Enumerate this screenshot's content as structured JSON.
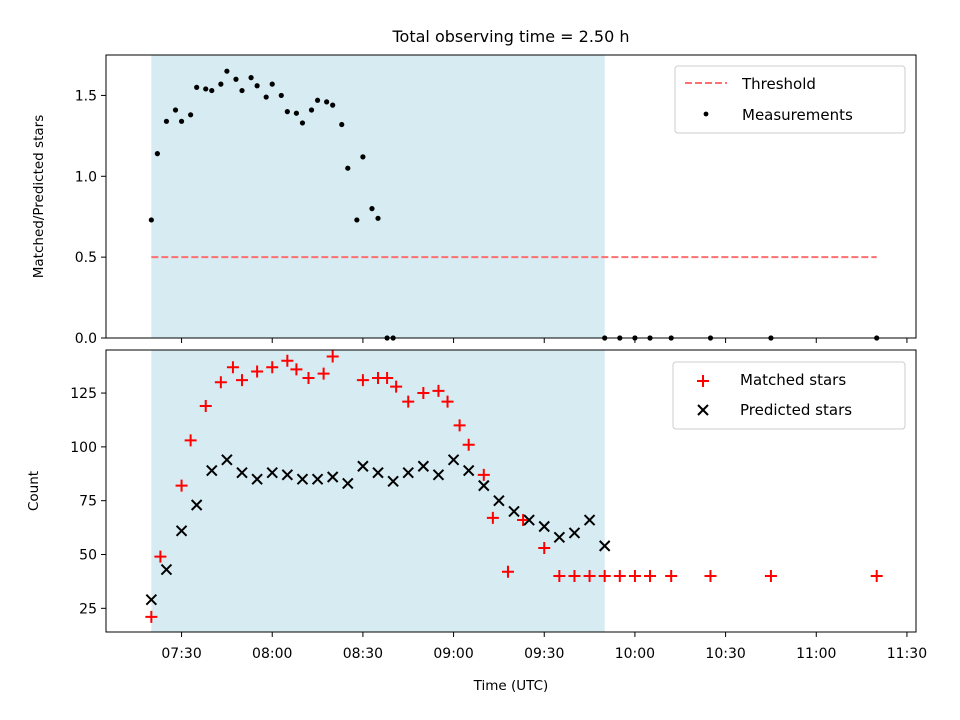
{
  "chart_data": [
    {
      "type": "scatter",
      "title": "Total observing time = 2.50 h",
      "ylabel": "Matched/Predicted stars",
      "xlabel": "",
      "ylim": [
        0,
        1.75
      ],
      "yticks": [
        {
          "value": 0.0,
          "label": "0.0"
        },
        {
          "value": 0.5,
          "label": "0.5"
        },
        {
          "value": 1.0,
          "label": "1.0"
        },
        {
          "value": 1.5,
          "label": "1.5"
        }
      ],
      "shaded_span": {
        "start": "07:20",
        "end": "09:50",
        "color": "#add8e6"
      },
      "series": [
        {
          "name": "Threshold",
          "style": "dashed-line",
          "color": "#ff6f6f",
          "x": [
            "07:20",
            "11:20"
          ],
          "y": [
            0.5,
            0.5
          ]
        },
        {
          "name": "Measurements",
          "style": "dot",
          "color": "#000000",
          "x": [
            "07:20",
            "07:22",
            "07:25",
            "07:28",
            "07:30",
            "07:33",
            "07:35",
            "07:38",
            "07:40",
            "07:43",
            "07:45",
            "07:48",
            "07:50",
            "07:53",
            "07:55",
            "07:58",
            "08:00",
            "08:03",
            "08:05",
            "08:08",
            "08:10",
            "08:13",
            "08:15",
            "08:18",
            "08:20",
            "08:23",
            "08:25",
            "08:28",
            "08:30",
            "08:33",
            "08:35",
            "08:38",
            "08:40",
            "09:50",
            "09:55",
            "10:00",
            "10:05",
            "10:12",
            "10:25",
            "10:45",
            "11:20"
          ],
          "y": [
            0.73,
            1.14,
            1.34,
            1.41,
            1.34,
            1.38,
            1.55,
            1.54,
            1.53,
            1.57,
            1.65,
            1.6,
            1.53,
            1.61,
            1.56,
            1.49,
            1.57,
            1.5,
            1.4,
            1.39,
            1.33,
            1.41,
            1.47,
            1.46,
            1.44,
            1.32,
            1.05,
            0.73,
            1.12,
            0.8,
            0.74,
            0.0,
            0.0,
            0.0,
            0.0,
            0.0,
            0.0,
            0.0,
            0.0,
            0.0,
            0.0
          ]
        }
      ]
    },
    {
      "type": "scatter",
      "title": "",
      "ylabel": "Count",
      "xlabel": "Time (UTC)",
      "ylim": [
        14,
        145
      ],
      "yticks": [
        {
          "value": 25,
          "label": "25"
        },
        {
          "value": 50,
          "label": "50"
        },
        {
          "value": 75,
          "label": "75"
        },
        {
          "value": 100,
          "label": "100"
        },
        {
          "value": 125,
          "label": "125"
        }
      ],
      "xlim": [
        "07:05",
        "11:33"
      ],
      "xticks": [
        {
          "value": "07:30",
          "label": "07:30"
        },
        {
          "value": "08:00",
          "label": "08:00"
        },
        {
          "value": "08:30",
          "label": "08:30"
        },
        {
          "value": "09:00",
          "label": "09:00"
        },
        {
          "value": "09:30",
          "label": "09:30"
        },
        {
          "value": "10:00",
          "label": "10:00"
        },
        {
          "value": "10:30",
          "label": "10:30"
        },
        {
          "value": "11:00",
          "label": "11:00"
        },
        {
          "value": "11:30",
          "label": "11:30"
        }
      ],
      "shaded_span": {
        "start": "07:20",
        "end": "09:50",
        "color": "#add8e6"
      },
      "series": [
        {
          "name": "Matched stars",
          "style": "plus",
          "color": "#ff0000",
          "x": [
            "07:20",
            "07:23",
            "07:30",
            "07:33",
            "07:38",
            "07:43",
            "07:47",
            "07:50",
            "07:55",
            "08:00",
            "08:05",
            "08:08",
            "08:12",
            "08:17",
            "08:20",
            "08:30",
            "08:35",
            "08:38",
            "08:41",
            "08:45",
            "08:50",
            "08:55",
            "08:58",
            "09:02",
            "09:05",
            "09:10",
            "09:13",
            "09:18",
            "09:23",
            "09:30",
            "09:35",
            "09:40",
            "09:45",
            "09:50",
            "09:55",
            "10:00",
            "10:05",
            "10:12",
            "10:25",
            "10:45",
            "11:20"
          ],
          "y": [
            21,
            49,
            82,
            103,
            119,
            130,
            137,
            131,
            135,
            137,
            140,
            136,
            132,
            134,
            142,
            131,
            132,
            132,
            128,
            121,
            125,
            126,
            121,
            110,
            101,
            87,
            67,
            42,
            66,
            53,
            40,
            40,
            40,
            40,
            40,
            40,
            40,
            40,
            40,
            40,
            40
          ]
        },
        {
          "name": "Predicted stars",
          "style": "x",
          "color": "#000000",
          "x": [
            "07:20",
            "07:25",
            "07:30",
            "07:35",
            "07:40",
            "07:45",
            "07:50",
            "07:55",
            "08:00",
            "08:05",
            "08:10",
            "08:15",
            "08:20",
            "08:25",
            "08:30",
            "08:35",
            "08:40",
            "08:45",
            "08:50",
            "08:55",
            "09:00",
            "09:05",
            "09:10",
            "09:15",
            "09:20",
            "09:25",
            "09:30",
            "09:35",
            "09:40",
            "09:45",
            "09:50"
          ],
          "y": [
            29,
            43,
            61,
            73,
            89,
            94,
            88,
            85,
            88,
            87,
            85,
            85,
            86,
            83,
            91,
            88,
            84,
            88,
            91,
            87,
            94,
            89,
            82,
            75,
            70,
            66,
            63,
            58,
            60,
            66,
            54
          ]
        }
      ]
    }
  ]
}
